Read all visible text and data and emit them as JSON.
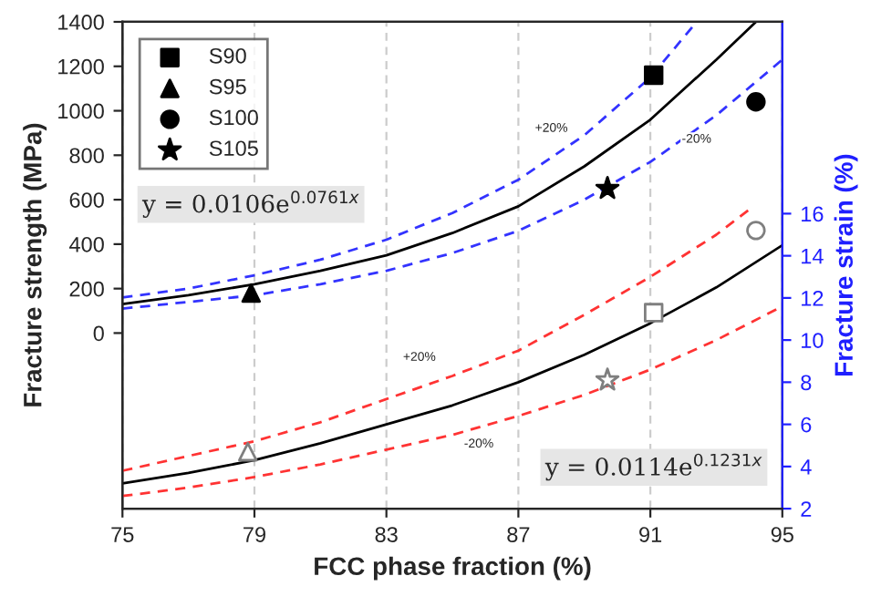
{
  "chart_data": {
    "type": "scatter",
    "xlabel": "FCC phase fraction (%)",
    "ylabel": "Fracture strength (MPa)",
    "y2label": "Fracture strain (%)",
    "xlim": [
      75,
      95
    ],
    "xticks": [
      75,
      79,
      83,
      87,
      91,
      95
    ],
    "ylim": [
      -790,
      1400
    ],
    "yticks": [
      0,
      200,
      400,
      600,
      800,
      1000,
      1200,
      1400
    ],
    "y2lim": [
      2,
      25.1
    ],
    "y2ticks": [
      2,
      4,
      6,
      8,
      10,
      12,
      14,
      16
    ],
    "grid": "x",
    "legend": "top left",
    "series": [
      {
        "name": "S90",
        "marker": "square",
        "color": "#000000",
        "x": [
          91.1
        ],
        "values": [
          1160
        ]
      },
      {
        "name": "S95",
        "marker": "triangle",
        "color": "#000000",
        "x": [
          78.9
        ],
        "values": [
          180
        ]
      },
      {
        "name": "S100",
        "marker": "circle",
        "color": "#000000",
        "x": [
          94.2
        ],
        "values": [
          1040
        ]
      },
      {
        "name": "S105",
        "marker": "star",
        "color": "#000000",
        "x": [
          89.7
        ],
        "values": [
          650
        ]
      },
      {
        "marker": "square",
        "color": "#7f7f7f",
        "axis": "y2",
        "x": [
          91.1
        ],
        "values": [
          11.3
        ]
      },
      {
        "marker": "triangle",
        "color": "#7f7f7f",
        "axis": "y2",
        "x": [
          78.8
        ],
        "values": [
          4.7
        ]
      },
      {
        "marker": "circle",
        "color": "#7f7f7f",
        "axis": "y2",
        "x": [
          94.2
        ],
        "values": [
          15.2
        ]
      },
      {
        "marker": "star",
        "color": "#7f7f7f",
        "axis": "y2",
        "x": [
          89.7
        ],
        "values": [
          8.1
        ]
      },
      {
        "type": "line",
        "line_style": "solid",
        "color": "#000000",
        "x": [
          75,
          77,
          79,
          81,
          83,
          85,
          87,
          89,
          91,
          93,
          94.2
        ],
        "values": [
          130,
          170,
          220,
          280,
          350,
          450,
          570,
          750,
          960,
          1230,
          1400
        ]
      },
      {
        "type": "line",
        "line_style": "dashed",
        "color": "#3333ff",
        "x": [
          75,
          77,
          79,
          81,
          83,
          85,
          87,
          89,
          91,
          92.4
        ],
        "values": [
          160,
          200,
          260,
          330,
          420,
          540,
          690,
          890,
          1150,
          1400
        ]
      },
      {
        "type": "line",
        "line_style": "dashed",
        "color": "#3333ff",
        "x": [
          75,
          77,
          79,
          81,
          83,
          85,
          87,
          89,
          91,
          93,
          95
        ],
        "values": [
          110,
          140,
          170,
          220,
          280,
          360,
          460,
          600,
          770,
          980,
          1230
        ]
      },
      {
        "type": "line",
        "line_style": "solid",
        "color": "#000000",
        "axis": "y2",
        "x": [
          75,
          77,
          79,
          81,
          83,
          85,
          87,
          89,
          91,
          93,
          95
        ],
        "values": [
          3.2,
          3.7,
          4.3,
          5.1,
          6.0,
          6.9,
          8.0,
          9.3,
          10.8,
          12.5,
          14.5
        ]
      },
      {
        "type": "line",
        "line_style": "dashed",
        "color": "#ff3333",
        "axis": "y2",
        "x": [
          75,
          77,
          79,
          81,
          83,
          85,
          87,
          89,
          91,
          93,
          94
        ],
        "values": [
          3.8,
          4.5,
          5.2,
          6.1,
          7.2,
          8.3,
          9.5,
          11.2,
          13.0,
          15.0,
          16.2
        ]
      },
      {
        "type": "line",
        "line_style": "dashed",
        "color": "#ff3333",
        "axis": "y2",
        "x": [
          75,
          77,
          79,
          81,
          83,
          85,
          87,
          89,
          91,
          93,
          95
        ],
        "values": [
          2.6,
          3.0,
          3.5,
          4.1,
          4.8,
          5.5,
          6.4,
          7.4,
          8.6,
          10.0,
          11.6
        ]
      }
    ],
    "annotations": [
      "y = 0.0106e$^{0.0761x}$",
      "y = 0.0114e$^{0.1231x}$",
      {
        "text": "+20%",
        "x": 88.0,
        "y": 920
      },
      {
        "text": "-20%",
        "x": 92.4,
        "y": 871
      },
      {
        "text": "+20%",
        "x": 84.0,
        "y": -110
      },
      {
        "text": "-20%",
        "x": 85.8,
        "y": -500
      }
    ]
  }
}
